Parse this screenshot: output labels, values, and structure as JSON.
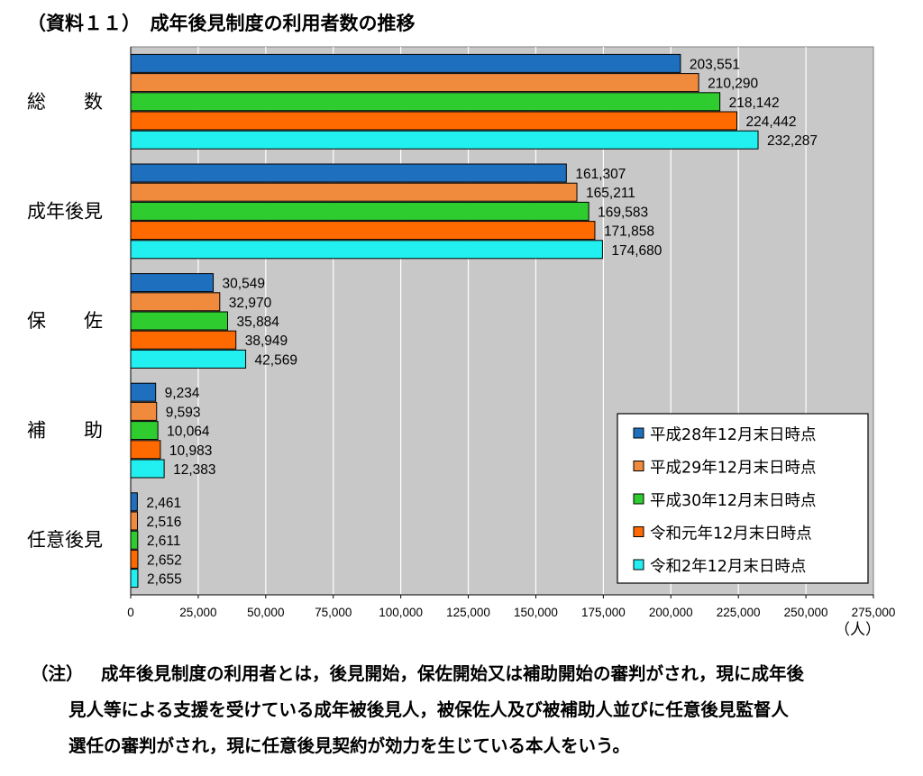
{
  "title": "（資料１１）　成年後見制度の利用者数の推移",
  "unit_label": "（人）",
  "note": {
    "head": "（注）",
    "lines": [
      "成年後見制度の利用者とは，後見開始，保佐開始又は補助開始の審判がされ，現に成年後",
      "見人等による支援を受けている成年被後見人，被保佐人及び被補助人並びに任意後見監督人",
      "選任の審判がされ，現に任意後見契約が効力を生じている本人をいう。"
    ]
  },
  "chart_data": {
    "type": "bar",
    "orientation": "horizontal",
    "categories": [
      "総　　数",
      "成年後見",
      "保　　佐",
      "補　　助",
      "任意後見"
    ],
    "series": [
      {
        "name": "平成28年12月末日時点",
        "color": "#1f6fbf",
        "values": [
          203551,
          161307,
          30549,
          9234,
          2461
        ],
        "labels": [
          "203,551",
          "161,307",
          "30,549",
          "9,234",
          "2,461"
        ]
      },
      {
        "name": "平成29年12月末日時点",
        "color": "#f08a3c",
        "values": [
          210290,
          165211,
          32970,
          9593,
          2516
        ],
        "labels": [
          "210,290",
          "165,211",
          "32,970",
          "9,593",
          "2,516"
        ]
      },
      {
        "name": "平成30年12月末日時点",
        "color": "#2ecc2e",
        "values": [
          218142,
          169583,
          35884,
          10064,
          2611
        ],
        "labels": [
          "218,142",
          "169,583",
          "35,884",
          "10,064",
          "2,611"
        ]
      },
      {
        "name": "令和元年12月末日時点",
        "color": "#ff6a00",
        "values": [
          224442,
          171858,
          38949,
          10983,
          2652
        ],
        "labels": [
          "224,442",
          "171,858",
          "38,949",
          "10,983",
          "2,652"
        ]
      },
      {
        "name": "令和2年12月末日時点",
        "color": "#22f0f0",
        "values": [
          232287,
          174680,
          42569,
          12383,
          2655
        ],
        "labels": [
          "232,287",
          "174,680",
          "42,569",
          "12,383",
          "2,655"
        ]
      }
    ],
    "xlim": [
      0,
      275000
    ],
    "xticks": [
      0,
      25000,
      50000,
      75000,
      100000,
      125000,
      150000,
      175000,
      200000,
      225000,
      250000,
      275000
    ],
    "xtick_labels": [
      "0",
      "25,000",
      "50,000",
      "75,000",
      "100,000",
      "125,000",
      "150,000",
      "175,000",
      "200,000",
      "225,000",
      "250,000",
      "275,000"
    ],
    "grid": true,
    "legend_position": "bottom-right",
    "plot_background": "#c8c8c8"
  }
}
